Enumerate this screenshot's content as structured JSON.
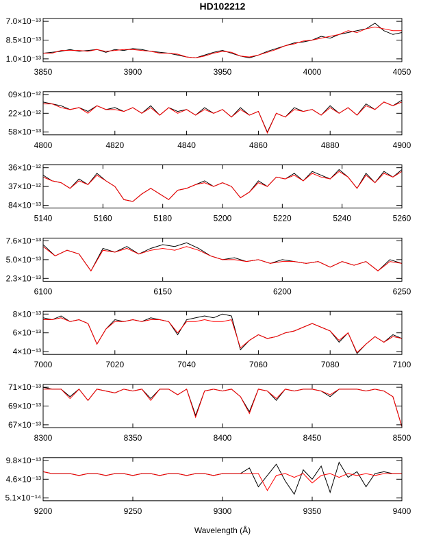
{
  "chart_data": [
    {
      "type": "line",
      "title": "HD102212",
      "x": [
        3850,
        3855,
        3860,
        3865,
        3870,
        3875,
        3880,
        3885,
        3890,
        3895,
        3900,
        3905,
        3910,
        3915,
        3920,
        3925,
        3930,
        3935,
        3940,
        3945,
        3950,
        3955,
        3960,
        3965,
        3970,
        3975,
        3980,
        3985,
        3990,
        3995,
        4000,
        4005,
        4010,
        4015,
        4020,
        4025,
        4030,
        4035,
        4040,
        4045,
        4050
      ],
      "xlim": [
        3850,
        4050
      ],
      "xticks": [
        3850,
        3900,
        3950,
        4000,
        4050
      ],
      "ylim": [
        -0.15,
        2.15
      ],
      "yticks": [
        {
          "value": 0,
          "label": "1.0×10⁻¹³"
        },
        {
          "value": 1,
          "label": "8.5×10⁻¹³"
        },
        {
          "value": 2,
          "label": "7.0×10⁻¹³"
        }
      ],
      "series": [
        {
          "color": "#000000",
          "values": [
            0.3,
            0.35,
            0.4,
            0.5,
            0.4,
            0.45,
            0.5,
            0.35,
            0.5,
            0.45,
            0.55,
            0.5,
            0.4,
            0.35,
            0.3,
            0.2,
            0.1,
            0.05,
            0.2,
            0.35,
            0.45,
            0.3,
            0.15,
            0.05,
            0.2,
            0.4,
            0.55,
            0.7,
            0.85,
            0.9,
            1.0,
            1.2,
            1.1,
            1.3,
            1.4,
            1.5,
            1.6,
            1.9,
            1.5,
            1.3,
            1.4
          ]
        },
        {
          "color": "#ff0000",
          "values": [
            0.3,
            0.3,
            0.45,
            0.45,
            0.45,
            0.4,
            0.5,
            0.4,
            0.45,
            0.5,
            0.5,
            0.45,
            0.4,
            0.3,
            0.3,
            0.25,
            0.1,
            0.05,
            0.15,
            0.3,
            0.4,
            0.35,
            0.15,
            0.1,
            0.2,
            0.35,
            0.5,
            0.7,
            0.8,
            0.95,
            1.0,
            1.1,
            1.2,
            1.3,
            1.5,
            1.4,
            1.6,
            1.7,
            1.6,
            1.5,
            1.5
          ]
        }
      ]
    },
    {
      "type": "line",
      "x": [
        4800,
        4802.5,
        4805,
        4807.5,
        4810,
        4812.5,
        4815,
        4817.5,
        4820,
        4822.5,
        4825,
        4827.5,
        4830,
        4832.5,
        4835,
        4837.5,
        4840,
        4842.5,
        4845,
        4847.5,
        4850,
        4852.5,
        4855,
        4857.5,
        4860,
        4862.5,
        4865,
        4867.5,
        4870,
        4872.5,
        4875,
        4877.5,
        4880,
        4882.5,
        4885,
        4887.5,
        4890,
        4892.5,
        4895,
        4897.5,
        4900
      ],
      "xlim": [
        4800,
        4900
      ],
      "xticks": [
        4800,
        4820,
        4840,
        4860,
        4880,
        4900
      ],
      "ylim": [
        -0.15,
        2.15
      ],
      "yticks": [
        {
          "value": 0,
          "label": "58×10⁻¹³"
        },
        {
          "value": 1,
          "label": "22×10⁻¹²"
        },
        {
          "value": 2,
          "label": "09×10⁻¹²"
        }
      ],
      "series": [
        {
          "color": "#000000",
          "values": [
            1.6,
            1.5,
            1.4,
            1.2,
            1.3,
            1.1,
            1.4,
            1.2,
            1.3,
            1.1,
            1.3,
            1.0,
            1.4,
            0.9,
            1.3,
            1.1,
            1.2,
            0.9,
            1.3,
            1.0,
            1.2,
            0.8,
            1.3,
            0.9,
            1.1,
            0.0,
            1.0,
            0.8,
            1.3,
            1.1,
            1.2,
            0.9,
            1.4,
            1.0,
            1.3,
            0.9,
            1.5,
            1.2,
            1.6,
            1.4,
            1.7
          ]
        },
        {
          "color": "#ff0000",
          "values": [
            1.5,
            1.5,
            1.3,
            1.2,
            1.3,
            1.0,
            1.4,
            1.2,
            1.2,
            1.1,
            1.3,
            1.0,
            1.3,
            0.9,
            1.3,
            1.0,
            1.2,
            0.9,
            1.2,
            1.0,
            1.2,
            0.8,
            1.2,
            0.9,
            1.1,
            -0.05,
            1.0,
            0.8,
            1.2,
            1.1,
            1.2,
            0.9,
            1.3,
            1.0,
            1.3,
            0.9,
            1.4,
            1.2,
            1.6,
            1.4,
            1.6
          ]
        }
      ]
    },
    {
      "type": "line",
      "x": [
        5140,
        5143,
        5146,
        5149,
        5152,
        5155,
        5158,
        5161,
        5164,
        5167,
        5170,
        5173,
        5176,
        5179,
        5182,
        5185,
        5188,
        5191,
        5194,
        5197,
        5200,
        5203,
        5206,
        5209,
        5212,
        5215,
        5218,
        5221,
        5224,
        5227,
        5230,
        5233,
        5236,
        5239,
        5242,
        5245,
        5248,
        5251,
        5254,
        5257,
        5260
      ],
      "xlim": [
        5140,
        5260
      ],
      "xticks": [
        5140,
        5160,
        5180,
        5200,
        5220,
        5240,
        5260
      ],
      "ylim": [
        -0.15,
        2.15
      ],
      "yticks": [
        {
          "value": 0,
          "label": "84×10⁻¹³"
        },
        {
          "value": 1,
          "label": "37×10⁻¹²"
        },
        {
          "value": 2,
          "label": "36×10⁻¹²"
        }
      ],
      "series": [
        {
          "color": "#000000",
          "values": [
            1.6,
            1.3,
            1.2,
            0.9,
            1.4,
            1.1,
            1.7,
            1.3,
            1.0,
            0.3,
            0.2,
            0.6,
            0.9,
            0.6,
            0.3,
            0.8,
            0.9,
            1.1,
            1.3,
            1.0,
            1.2,
            1.0,
            0.4,
            0.7,
            1.3,
            1.0,
            1.5,
            1.4,
            1.7,
            1.3,
            1.8,
            1.6,
            1.4,
            1.9,
            1.5,
            0.9,
            1.7,
            1.2,
            1.8,
            1.5,
            1.9
          ]
        },
        {
          "color": "#ff0000",
          "values": [
            1.5,
            1.3,
            1.2,
            0.9,
            1.3,
            1.1,
            1.6,
            1.3,
            1.0,
            0.3,
            0.2,
            0.6,
            0.9,
            0.6,
            0.3,
            0.8,
            0.9,
            1.1,
            1.2,
            1.0,
            1.2,
            1.0,
            0.4,
            0.7,
            1.2,
            1.0,
            1.5,
            1.4,
            1.6,
            1.3,
            1.7,
            1.5,
            1.4,
            1.8,
            1.5,
            0.9,
            1.6,
            1.2,
            1.7,
            1.5,
            1.8
          ]
        }
      ]
    },
    {
      "type": "line",
      "x": [
        6100,
        6105,
        6110,
        6115,
        6120,
        6125,
        6130,
        6135,
        6140,
        6145,
        6150,
        6155,
        6160,
        6165,
        6170,
        6175,
        6180,
        6185,
        6190,
        6195,
        6200,
        6205,
        6210,
        6215,
        6220,
        6225,
        6230,
        6235,
        6240,
        6245,
        6250
      ],
      "xlim": [
        6100,
        6250
      ],
      "xticks": [
        6100,
        6150,
        6200,
        6250
      ],
      "ylim": [
        -0.15,
        2.15
      ],
      "yticks": [
        {
          "value": 0,
          "label": "2.3×10⁻¹³"
        },
        {
          "value": 1,
          "label": "5.0×10⁻¹³"
        },
        {
          "value": 2,
          "label": "7.6×10⁻¹³"
        }
      ],
      "series": [
        {
          "color": "#000000",
          "values": [
            1.8,
            1.2,
            1.5,
            1.3,
            0.4,
            1.6,
            1.4,
            1.7,
            1.3,
            1.6,
            1.8,
            1.7,
            1.9,
            1.6,
            1.2,
            1.0,
            1.1,
            0.9,
            1.0,
            0.8,
            1.0,
            0.9,
            0.8,
            0.9,
            0.6,
            0.9,
            0.7,
            0.9,
            0.4,
            1.0,
            0.8
          ]
        },
        {
          "color": "#ff0000",
          "values": [
            1.7,
            1.2,
            1.5,
            1.3,
            0.4,
            1.5,
            1.4,
            1.6,
            1.3,
            1.5,
            1.6,
            1.5,
            1.7,
            1.5,
            1.2,
            1.0,
            1.0,
            0.9,
            1.0,
            0.8,
            0.9,
            0.9,
            0.8,
            0.9,
            0.6,
            0.9,
            0.7,
            0.9,
            0.4,
            0.9,
            0.8
          ]
        }
      ]
    },
    {
      "type": "line",
      "x": [
        7000,
        7002.5,
        7005,
        7007.5,
        7010,
        7012.5,
        7015,
        7017.5,
        7020,
        7022.5,
        7025,
        7027.5,
        7030,
        7032.5,
        7035,
        7037.5,
        7040,
        7042.5,
        7045,
        7047.5,
        7050,
        7052.5,
        7055,
        7057.5,
        7060,
        7062.5,
        7065,
        7067.5,
        7070,
        7072.5,
        7075,
        7077.5,
        7080,
        7082.5,
        7085,
        7087.5,
        7090,
        7092.5,
        7095,
        7097.5,
        7100
      ],
      "xlim": [
        7000,
        7100
      ],
      "xticks": [
        7000,
        7020,
        7040,
        7060,
        7080,
        7100
      ],
      "ylim": [
        -0.15,
        2.15
      ],
      "yticks": [
        {
          "value": 0,
          "label": "4×10⁻¹³"
        },
        {
          "value": 1,
          "label": "6×10⁻¹³"
        },
        {
          "value": 2,
          "label": "8×10⁻¹³"
        }
      ],
      "series": [
        {
          "color": "#000000",
          "values": [
            1.8,
            1.7,
            1.9,
            1.6,
            1.7,
            1.5,
            0.4,
            1.2,
            1.7,
            1.6,
            1.7,
            1.6,
            1.8,
            1.7,
            1.6,
            0.9,
            1.7,
            1.8,
            1.9,
            1.8,
            2.0,
            1.9,
            0.1,
            0.6,
            0.9,
            0.7,
            0.8,
            1.0,
            1.1,
            1.3,
            1.5,
            1.3,
            1.1,
            0.5,
            1.0,
            -0.1,
            0.4,
            0.8,
            0.5,
            0.9,
            0.7
          ]
        },
        {
          "color": "#ff0000",
          "values": [
            1.7,
            1.7,
            1.8,
            1.6,
            1.7,
            1.5,
            0.4,
            1.2,
            1.6,
            1.6,
            1.7,
            1.6,
            1.7,
            1.7,
            1.6,
            1.0,
            1.6,
            1.6,
            1.7,
            1.6,
            1.6,
            1.7,
            0.2,
            0.6,
            0.9,
            0.7,
            0.8,
            1.0,
            1.1,
            1.3,
            1.5,
            1.3,
            1.1,
            0.6,
            1.0,
            -0.05,
            0.4,
            0.8,
            0.5,
            0.8,
            0.7
          ]
        }
      ]
    },
    {
      "type": "line",
      "x": [
        8300,
        8305,
        8310,
        8315,
        8320,
        8325,
        8330,
        8335,
        8340,
        8345,
        8350,
        8355,
        8360,
        8365,
        8370,
        8375,
        8380,
        8385,
        8390,
        8395,
        8400,
        8405,
        8410,
        8415,
        8420,
        8425,
        8430,
        8435,
        8440,
        8445,
        8450,
        8455,
        8460,
        8465,
        8470,
        8475,
        8480,
        8485,
        8490,
        8495,
        8500
      ],
      "xlim": [
        8300,
        8500
      ],
      "xticks": [
        8300,
        8350,
        8400,
        8450,
        8500
      ],
      "ylim": [
        -0.15,
        2.15
      ],
      "yticks": [
        {
          "value": 0,
          "label": "67×10⁻¹³"
        },
        {
          "value": 1,
          "label": "69×10⁻¹³"
        },
        {
          "value": 2,
          "label": "71×10⁻¹³"
        }
      ],
      "series": [
        {
          "color": "#000000",
          "values": [
            2.0,
            1.9,
            1.9,
            1.5,
            1.9,
            1.3,
            1.9,
            1.8,
            1.7,
            1.9,
            1.8,
            1.9,
            1.4,
            1.9,
            1.9,
            1.6,
            1.9,
            0.5,
            1.8,
            1.9,
            1.8,
            1.9,
            1.5,
            0.7,
            1.9,
            1.8,
            1.3,
            1.9,
            1.8,
            1.9,
            1.9,
            1.8,
            1.5,
            1.9,
            1.9,
            1.9,
            1.8,
            1.9,
            1.8,
            1.5,
            -0.1
          ]
        },
        {
          "color": "#ff0000",
          "values": [
            1.9,
            1.9,
            1.9,
            1.4,
            1.9,
            1.3,
            1.9,
            1.8,
            1.7,
            1.9,
            1.8,
            1.9,
            1.3,
            1.9,
            1.9,
            1.6,
            1.9,
            0.4,
            1.8,
            1.9,
            1.8,
            1.9,
            1.5,
            0.6,
            1.9,
            1.8,
            1.4,
            1.9,
            1.8,
            1.9,
            1.9,
            1.8,
            1.6,
            1.9,
            1.9,
            1.9,
            1.8,
            1.9,
            1.8,
            1.5,
            -0.1
          ]
        }
      ]
    },
    {
      "type": "line",
      "xlabel": "Wavelength (Å)",
      "x": [
        9200,
        9205,
        9210,
        9215,
        9220,
        9225,
        9230,
        9235,
        9240,
        9245,
        9250,
        9255,
        9260,
        9265,
        9270,
        9275,
        9280,
        9285,
        9290,
        9295,
        9300,
        9305,
        9310,
        9315,
        9320,
        9325,
        9330,
        9335,
        9340,
        9345,
        9350,
        9355,
        9360,
        9365,
        9370,
        9375,
        9380,
        9385,
        9390,
        9395,
        9400
      ],
      "xlim": [
        9200,
        9400
      ],
      "xticks": [
        9200,
        9250,
        9300,
        9350,
        9400
      ],
      "ylim": [
        -0.15,
        2.15
      ],
      "yticks": [
        {
          "value": 0,
          "label": "5.1×10⁻¹⁴"
        },
        {
          "value": 1,
          "label": "4.6×10⁻¹³"
        },
        {
          "value": 2,
          "label": "9.8×10⁻¹³"
        }
      ],
      "series": [
        {
          "color": "#000000",
          "values": [
            1.4,
            1.3,
            1.3,
            1.3,
            1.2,
            1.3,
            1.3,
            1.2,
            1.3,
            1.3,
            1.2,
            1.3,
            1.3,
            1.2,
            1.3,
            1.3,
            1.2,
            1.3,
            1.3,
            1.2,
            1.3,
            1.3,
            1.3,
            1.6,
            0.6,
            1.2,
            1.8,
            0.9,
            0.2,
            1.5,
            1.0,
            1.7,
            0.3,
            1.9,
            1.1,
            1.4,
            0.6,
            1.3,
            1.4,
            1.3,
            1.3
          ]
        },
        {
          "color": "#ff0000",
          "values": [
            1.4,
            1.3,
            1.3,
            1.3,
            1.2,
            1.3,
            1.3,
            1.2,
            1.3,
            1.3,
            1.2,
            1.3,
            1.3,
            1.2,
            1.3,
            1.3,
            1.2,
            1.3,
            1.3,
            1.2,
            1.3,
            1.3,
            1.3,
            1.3,
            1.3,
            0.4,
            1.2,
            1.3,
            1.1,
            1.3,
            0.8,
            1.2,
            1.3,
            1.1,
            1.3,
            1.2,
            1.3,
            1.2,
            1.3,
            1.3,
            1.3
          ]
        }
      ]
    }
  ]
}
